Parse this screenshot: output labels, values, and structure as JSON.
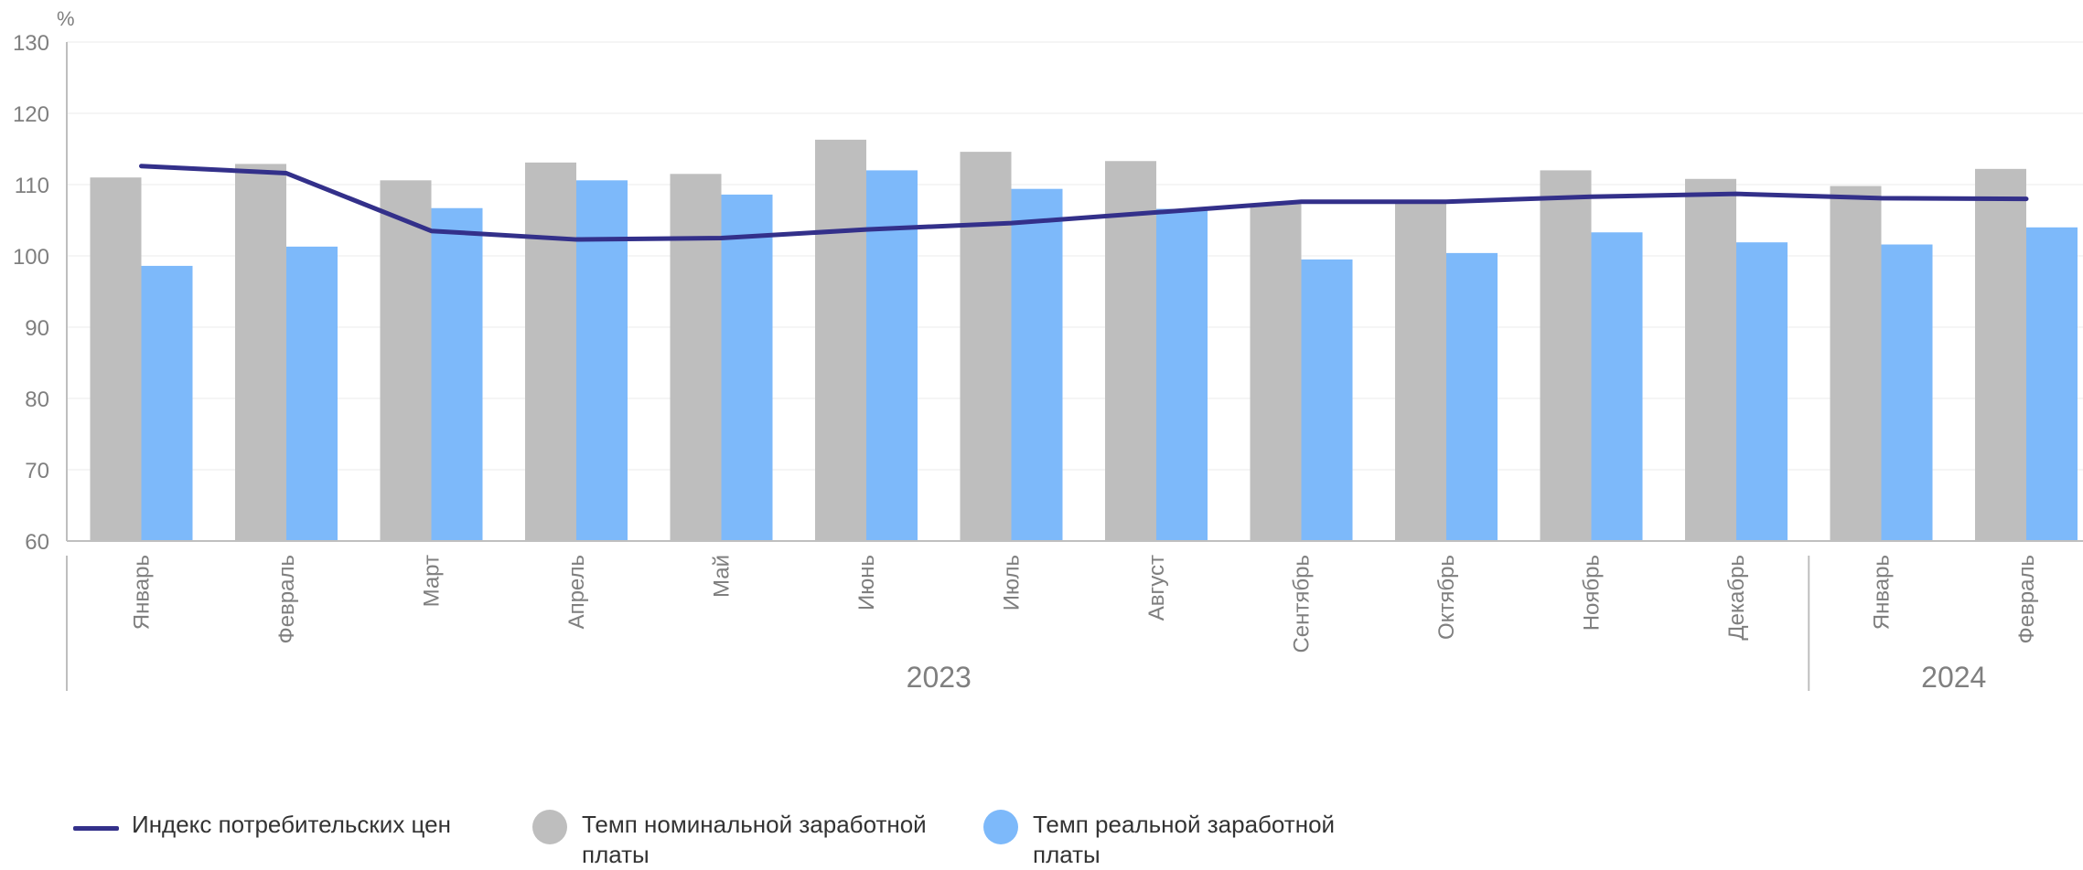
{
  "chart_data": {
    "type": "bar",
    "yunit": "%",
    "ylim": [
      60,
      130
    ],
    "yticks": [
      60,
      70,
      80,
      90,
      100,
      110,
      120,
      130
    ],
    "grid": true,
    "categories": [
      "Январь",
      "Февраль",
      "Март",
      "Апрель",
      "Май",
      "Июнь",
      "Июль",
      "Август",
      "Сентябрь",
      "Октябрь",
      "Ноябрь",
      "Декабрь",
      "Январь",
      "Февраль"
    ],
    "groups": [
      {
        "label": "2023",
        "count": 12
      },
      {
        "label": "2024",
        "count": 2
      }
    ],
    "series": [
      {
        "name": "Индекс потребительских цен",
        "kind": "line",
        "color": "#33308a",
        "values": [
          112.6,
          111.6,
          103.5,
          102.3,
          102.5,
          103.7,
          104.6,
          106.1,
          107.6,
          107.6,
          108.3,
          108.7,
          108.1,
          108.0
        ]
      },
      {
        "name": "Темп номинальной заработной платы",
        "kind": "bar",
        "color": "#bebebe",
        "values": [
          111.0,
          112.9,
          110.6,
          113.1,
          111.5,
          116.3,
          114.6,
          113.3,
          107.3,
          107.6,
          112.0,
          110.8,
          109.8,
          112.2
        ]
      },
      {
        "name": "Темп реальной заработной платы",
        "kind": "bar",
        "color": "#7db9fa",
        "values": [
          98.6,
          101.3,
          106.7,
          110.6,
          108.6,
          112.0,
          109.4,
          106.6,
          99.5,
          100.4,
          103.3,
          101.9,
          101.6,
          104.0
        ]
      }
    ]
  },
  "legend": {
    "cpi_label": "Индекс потребительских цен",
    "nominal_label": "Темп номинальной заработной платы",
    "real_label": "Темп реальной заработной платы"
  }
}
